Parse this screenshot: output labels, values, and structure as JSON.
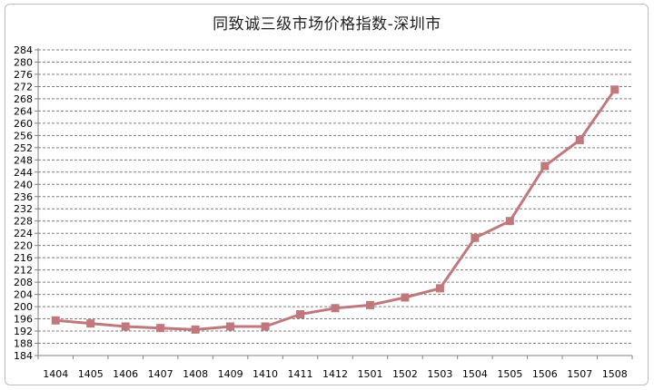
{
  "chart_data": {
    "type": "line",
    "title": "同致诚三级市场价格指数-深圳市",
    "xlabel": "",
    "ylabel": "",
    "categories": [
      "1404",
      "1405",
      "1406",
      "1407",
      "1408",
      "1409",
      "1410",
      "1411",
      "1412",
      "1501",
      "1502",
      "1503",
      "1504",
      "1505",
      "1506",
      "1507",
      "1508"
    ],
    "series": [
      {
        "values": [
          195.5,
          194.5,
          193.5,
          193,
          192.5,
          193.5,
          193.5,
          197.5,
          199.5,
          200.5,
          203,
          206,
          222.5,
          228,
          246,
          254.5,
          271
        ]
      }
    ],
    "ylim": [
      184,
      284
    ],
    "ytick_step": 4,
    "grid": "horizontal dashed",
    "legend": "none",
    "colors": {
      "line": "#c0787c",
      "marker": "#c0787c",
      "grid": "#7f7f7f",
      "axis": "#808080"
    }
  }
}
